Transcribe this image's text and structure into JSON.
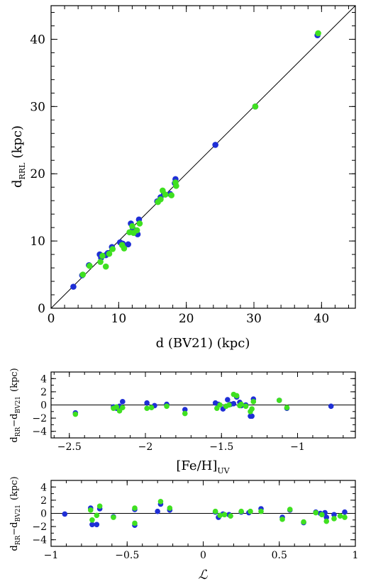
{
  "chart_data": [
    {
      "type": "scatter",
      "xlabel": "d (BV21) (kpc)",
      "ylabel": "d_RRL (kpc)",
      "ylabel_main": "d",
      "ylabel_sub": "RRL",
      "ylabel_unit": "(kpc)",
      "xlim": [
        0,
        45
      ],
      "ylim": [
        0,
        45
      ],
      "xticks": [
        0,
        10,
        20,
        30,
        40
      ],
      "yticks": [
        0,
        10,
        20,
        30,
        40
      ],
      "xtick_labels": [
        "0",
        "10",
        "20",
        "30",
        "40"
      ],
      "ytick_labels": [
        "0",
        "10",
        "20",
        "30",
        "40"
      ],
      "reference_line": "y = x",
      "colors": {
        "series1": "#1f2fd6",
        "series2": "#3fe020"
      },
      "series": [
        {
          "color": "#1f2fd6",
          "x": [
            3.3,
            4.6,
            5.6,
            7.2,
            7.4,
            8.1,
            8.4,
            9.0,
            10.2,
            10.6,
            11.4,
            11.8,
            12.1,
            12.8,
            13.0,
            15.7,
            16.2,
            16.7,
            17.6,
            18.3,
            18.4,
            24.3,
            30.2,
            39.4
          ],
          "y": [
            3.2,
            4.9,
            6.4,
            8.0,
            7.5,
            7.9,
            8.2,
            9.1,
            9.8,
            9.6,
            9.5,
            12.6,
            11.8,
            11.0,
            13.2,
            15.9,
            16.5,
            17.0,
            17.0,
            18.6,
            19.2,
            24.3,
            30.0,
            40.6
          ]
        },
        {
          "color": "#3fe020",
          "x": [
            4.7,
            5.7,
            7.3,
            7.6,
            8.1,
            8.6,
            9.1,
            10.5,
            10.8,
            11.6,
            12.0,
            12.2,
            12.7,
            13.1,
            15.8,
            16.2,
            16.5,
            16.9,
            17.8,
            18.5,
            18.4,
            30.2,
            39.5
          ],
          "y": [
            5.0,
            6.3,
            6.9,
            7.8,
            6.2,
            8.1,
            8.8,
            9.4,
            8.9,
            11.3,
            12.2,
            11.2,
            11.6,
            12.6,
            15.8,
            16.2,
            17.5,
            16.9,
            16.8,
            18.2,
            18.7,
            30.0,
            40.9
          ]
        }
      ]
    },
    {
      "type": "scatter",
      "xlabel": "[Fe/H]_UV",
      "xlabel_main": "[Fe/H]",
      "xlabel_sub": "UV",
      "ylabel": "d_RR - d_BV21 (kpc)",
      "ylabel_a": "d",
      "ylabel_a_sub": "RR",
      "ylabel_mid": "−d",
      "ylabel_b_sub": "BV21",
      "ylabel_unit": "(kpc)",
      "xlim": [
        -2.62,
        -0.62
      ],
      "ylim": [
        -5,
        5
      ],
      "xticks": [
        -2.5,
        -2,
        -1.5,
        -1
      ],
      "yticks": [
        -4,
        -2,
        0,
        2,
        4
      ],
      "xtick_labels": [
        "−2.5",
        "−2",
        "−1.5",
        "−1"
      ],
      "ytick_labels": [
        "−4",
        "−2",
        "0",
        "2",
        "4"
      ],
      "reference_line": "y = 0",
      "series": [
        {
          "color": "#1f2fd6",
          "x": [
            -2.46,
            -2.21,
            -2.19,
            -2.17,
            -2.15,
            -1.99,
            -1.94,
            -1.86,
            -1.74,
            -1.54,
            -1.52,
            -1.49,
            -1.46,
            -1.44,
            -1.42,
            -1.4,
            -1.38,
            -1.37,
            -1.34,
            -1.31,
            -1.3,
            -1.29,
            -1.12,
            -1.07,
            -0.78
          ],
          "y": [
            -1.2,
            -0.3,
            -0.5,
            -0.2,
            0.5,
            0.3,
            -0.1,
            0.1,
            -0.7,
            0.3,
            0.1,
            -0.6,
            0.8,
            0.1,
            0.2,
            1.2,
            0.4,
            -0.1,
            0.0,
            -1.7,
            -1.7,
            0.9,
            0.7,
            -0.5,
            -0.2
          ]
        },
        {
          "color": "#3fe020",
          "x": [
            -2.46,
            -2.21,
            -2.19,
            -2.17,
            -2.15,
            -1.99,
            -1.96,
            -1.86,
            -1.74,
            -1.53,
            -1.51,
            -1.47,
            -1.45,
            -1.42,
            -1.4,
            -1.38,
            -1.37,
            -1.34,
            -1.31,
            -1.3,
            -1.29,
            -1.12,
            -1.07
          ],
          "y": [
            -1.4,
            -0.5,
            -0.3,
            -0.9,
            -0.4,
            -0.5,
            -0.4,
            -0.2,
            -1.3,
            -0.5,
            0.0,
            -0.2,
            0.0,
            1.6,
            1.4,
            -0.1,
            0.1,
            -0.2,
            -1.0,
            -0.6,
            0.5,
            0.7,
            -0.4
          ]
        }
      ]
    },
    {
      "type": "scatter",
      "xlabel": "ℒ",
      "ylabel": "d_RR - d_BV21 (kpc)",
      "ylabel_a": "d",
      "ylabel_a_sub": "RR",
      "ylabel_mid": "−d",
      "ylabel_b_sub": "BV21",
      "ylabel_unit": "(kpc)",
      "xlim": [
        -1.0,
        1.0
      ],
      "ylim": [
        -5,
        5
      ],
      "xticks": [
        -1,
        -0.5,
        0,
        0.5,
        1
      ],
      "yticks": [
        -4,
        -2,
        0,
        2,
        4
      ],
      "xtick_labels": [
        "−1",
        "−0.5",
        "0",
        "0.5",
        "1"
      ],
      "ytick_labels": [
        "−4",
        "−2",
        "0",
        "2",
        "4"
      ],
      "reference_line": "y = 0",
      "series": [
        {
          "color": "#1f2fd6",
          "x": [
            -0.91,
            -0.74,
            -0.73,
            -0.7,
            -0.68,
            -0.59,
            -0.45,
            -0.45,
            -0.3,
            -0.28,
            -0.22,
            0.08,
            0.1,
            0.13,
            0.17,
            0.25,
            0.3,
            0.38,
            0.52,
            0.57,
            0.66,
            0.74,
            0.77,
            0.8,
            0.81,
            0.86,
            0.93
          ],
          "y": [
            -0.1,
            0.8,
            -1.7,
            -1.7,
            0.7,
            -0.5,
            0.6,
            -1.8,
            0.3,
            1.4,
            0.5,
            0.2,
            -0.6,
            -0.1,
            -0.2,
            0.2,
            0.1,
            0.7,
            -0.6,
            0.5,
            -1.4,
            0.2,
            0.0,
            0.1,
            -0.6,
            -0.2,
            0.2
          ]
        },
        {
          "color": "#3fe020",
          "x": [
            -0.74,
            -0.73,
            -0.7,
            -0.68,
            -0.59,
            -0.45,
            -0.45,
            -0.28,
            -0.22,
            0.08,
            0.11,
            0.14,
            0.18,
            0.25,
            0.31,
            0.38,
            0.52,
            0.57,
            0.66,
            0.74,
            0.78,
            0.81,
            0.86,
            0.9,
            0.93
          ],
          "y": [
            0.5,
            -1.0,
            -0.3,
            1.1,
            -0.6,
            0.8,
            -1.5,
            1.8,
            0.8,
            0.3,
            -0.3,
            -0.2,
            -0.4,
            0.3,
            0.3,
            0.3,
            -0.9,
            0.6,
            -1.3,
            0.1,
            -0.2,
            -1.2,
            -0.8,
            -0.4,
            -0.6
          ]
        }
      ]
    }
  ]
}
